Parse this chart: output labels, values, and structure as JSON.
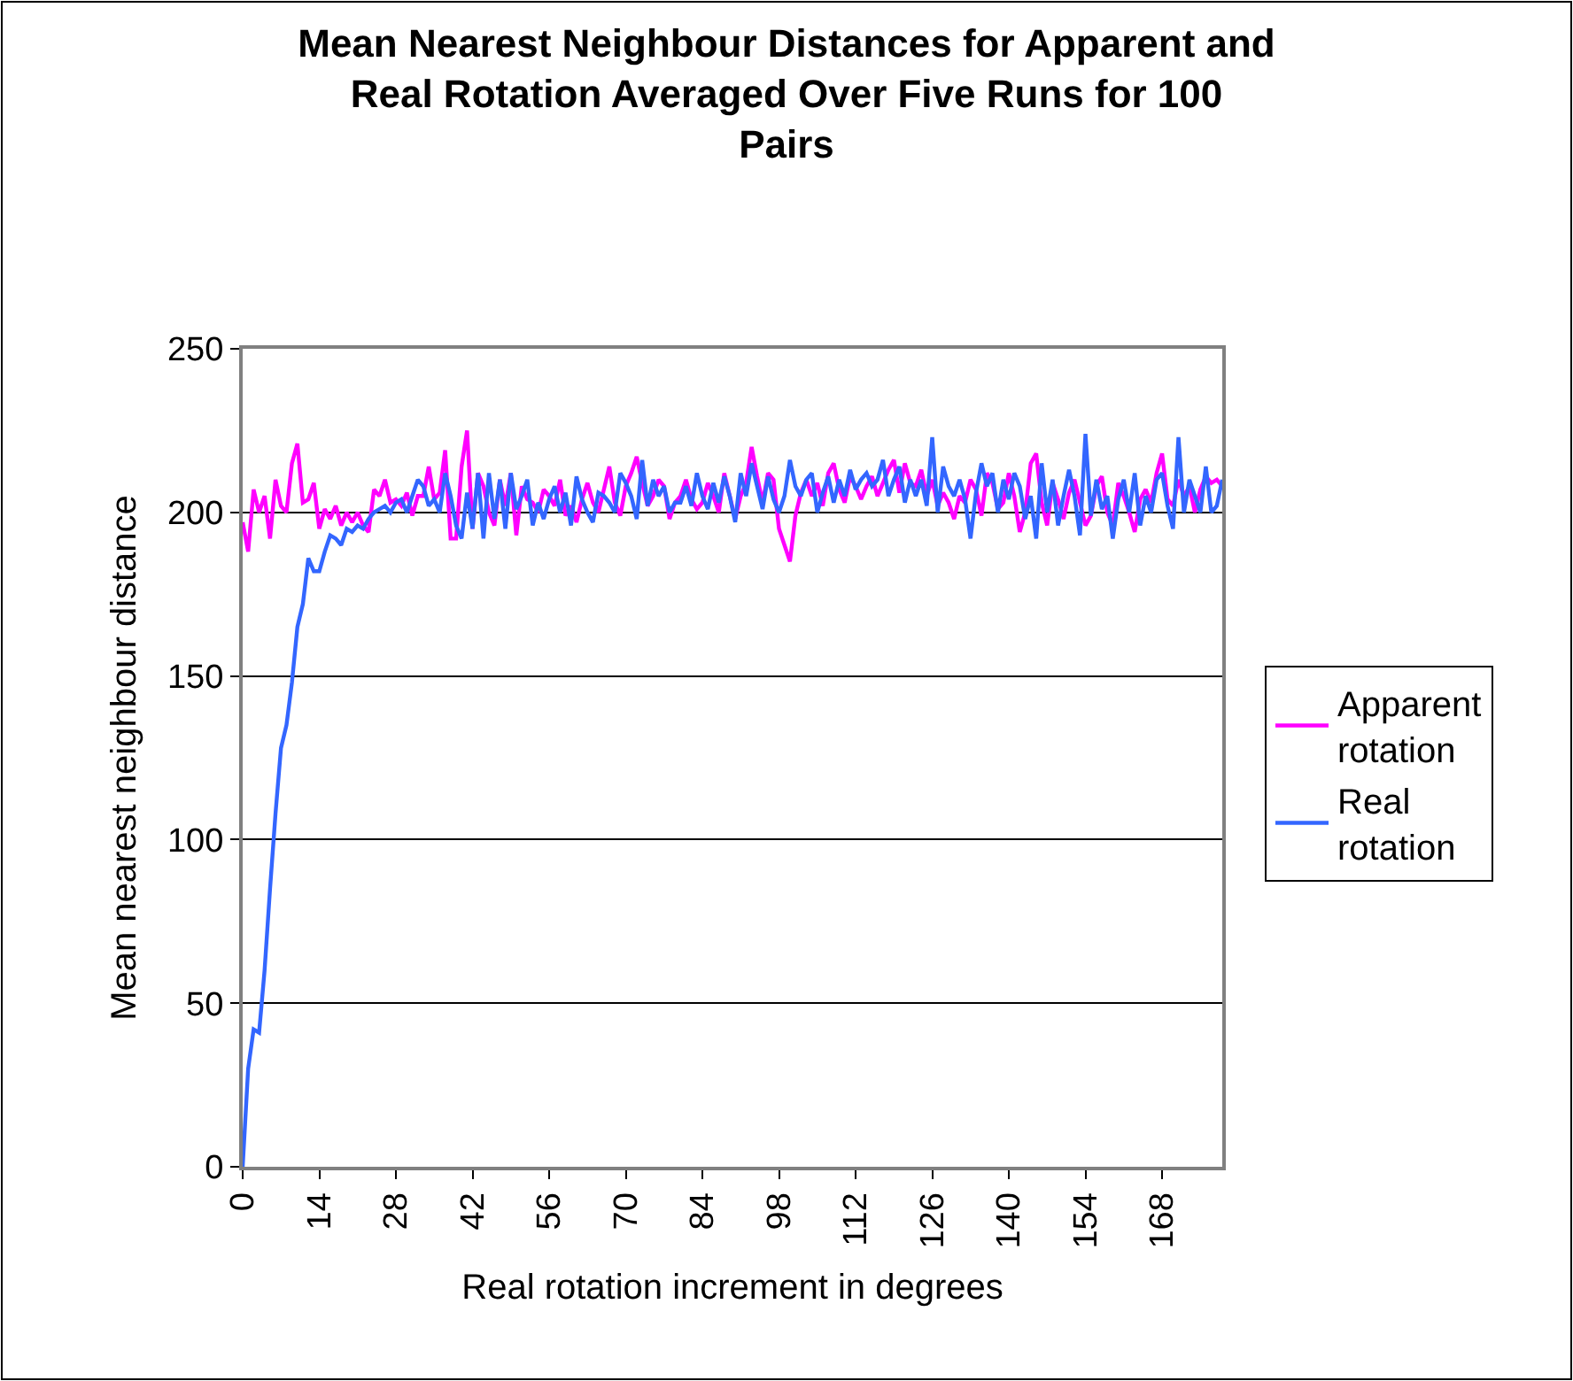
{
  "chart_data": {
    "type": "line",
    "title": "Mean Nearest Neighbour Distances for Apparent and Real Rotation Averaged Over Five Runs for 100 Pairs",
    "xlabel": "Real rotation increment in degrees",
    "ylabel": "Mean nearest neighbour distance",
    "x": [
      0,
      1,
      2,
      3,
      4,
      5,
      6,
      7,
      8,
      9,
      10,
      11,
      12,
      13,
      14,
      15,
      16,
      17,
      18,
      19,
      20,
      21,
      22,
      23,
      24,
      25,
      26,
      27,
      28,
      29,
      30,
      31,
      32,
      33,
      34,
      35,
      36,
      37,
      38,
      39,
      40,
      41,
      42,
      43,
      44,
      45,
      46,
      47,
      48,
      49,
      50,
      51,
      52,
      53,
      54,
      55,
      56,
      57,
      58,
      59,
      60,
      61,
      62,
      63,
      64,
      65,
      66,
      67,
      68,
      69,
      70,
      71,
      72,
      73,
      74,
      75,
      76,
      77,
      78,
      79,
      80,
      81,
      82,
      83,
      84,
      85,
      86,
      87,
      88,
      89,
      90,
      91,
      92,
      93,
      94,
      95,
      96,
      97,
      98,
      99,
      100,
      101,
      102,
      103,
      104,
      105,
      106,
      107,
      108,
      109,
      110,
      111,
      112,
      113,
      114,
      115,
      116,
      117,
      118,
      119,
      120,
      121,
      122,
      123,
      124,
      125,
      126,
      127,
      128,
      129,
      130,
      131,
      132,
      133,
      134,
      135,
      136,
      137,
      138,
      139,
      140,
      141,
      142,
      143,
      144,
      145,
      146,
      147,
      148,
      149,
      150,
      151,
      152,
      153,
      154,
      155,
      156,
      157,
      158,
      159,
      160,
      161,
      162,
      163,
      164,
      165,
      166,
      167,
      168,
      169,
      170,
      171,
      172,
      173,
      174,
      175,
      176,
      177,
      178,
      179
    ],
    "series": [
      {
        "name": "Apparent rotation",
        "color": "#ff00ff",
        "values": [
          197,
          188,
          207,
          200,
          205,
          192,
          210,
          202,
          200,
          215,
          221,
          203,
          204,
          209,
          195,
          201,
          198,
          202,
          196,
          200,
          197,
          200,
          196,
          194,
          207,
          205,
          210,
          203,
          204,
          202,
          206,
          199,
          205,
          205,
          214,
          204,
          206,
          219,
          192,
          192,
          214,
          225,
          195,
          212,
          208,
          200,
          196,
          210,
          202,
          212,
          193,
          208,
          204,
          203,
          200,
          207,
          205,
          202,
          210,
          199,
          202,
          197,
          204,
          209,
          203,
          200,
          207,
          214,
          203,
          199,
          208,
          212,
          217,
          209,
          202,
          205,
          210,
          208,
          198,
          203,
          205,
          210,
          204,
          201,
          203,
          209,
          205,
          200,
          212,
          205,
          198,
          205,
          209,
          220,
          211,
          203,
          212,
          210,
          195,
          190,
          185,
          199,
          206,
          210,
          205,
          209,
          202,
          212,
          215,
          207,
          203,
          211,
          208,
          204,
          208,
          211,
          205,
          209,
          213,
          216,
          206,
          215,
          209,
          208,
          213,
          205,
          210,
          202,
          206,
          203,
          198,
          205,
          203,
          210,
          207,
          199,
          212,
          209,
          201,
          203,
          212,
          205,
          194,
          200,
          215,
          218,
          203,
          196,
          209,
          204,
          198,
          206,
          210,
          203,
          196,
          199,
          208,
          211,
          200,
          196,
          209,
          205,
          200,
          194,
          204,
          207,
          203,
          212,
          218,
          204,
          202,
          210,
          205,
          208,
          200,
          207,
          211,
          209,
          210,
          208
        ]
      },
      {
        "name": "Real rotation",
        "color": "#3366ff",
        "values": [
          0,
          30,
          42,
          41,
          60,
          85,
          108,
          128,
          135,
          148,
          165,
          172,
          186,
          182,
          182,
          188,
          193,
          192,
          190,
          195,
          194,
          196,
          195,
          198,
          200,
          201,
          202,
          200,
          203,
          204,
          200,
          205,
          210,
          208,
          202,
          204,
          200,
          212,
          205,
          196,
          192,
          206,
          195,
          212,
          192,
          212,
          198,
          210,
          195,
          212,
          201,
          205,
          210,
          196,
          203,
          198,
          204,
          208,
          200,
          206,
          196,
          211,
          204,
          200,
          197,
          206,
          205,
          203,
          200,
          212,
          209,
          205,
          198,
          216,
          202,
          210,
          205,
          208,
          200,
          203,
          203,
          208,
          202,
          212,
          205,
          201,
          209,
          203,
          211,
          205,
          197,
          212,
          205,
          215,
          208,
          201,
          211,
          204,
          200,
          205,
          216,
          208,
          205,
          210,
          212,
          200,
          206,
          211,
          203,
          210,
          205,
          213,
          207,
          210,
          212,
          208,
          210,
          216,
          205,
          210,
          214,
          203,
          210,
          205,
          210,
          202,
          223,
          200,
          214,
          208,
          205,
          210,
          204,
          192,
          206,
          215,
          208,
          212,
          200,
          210,
          204,
          212,
          208,
          198,
          205,
          192,
          215,
          200,
          210,
          196,
          205,
          213,
          205,
          193,
          224,
          199,
          210,
          201,
          205,
          192,
          204,
          210,
          200,
          212,
          196,
          205,
          200,
          210,
          212,
          202,
          195,
          223,
          200,
          210,
          205,
          200,
          214,
          200,
          202,
          210
        ]
      }
    ],
    "xlim": [
      0,
      179
    ],
    "xticks": [
      0,
      14,
      28,
      42,
      56,
      70,
      84,
      98,
      112,
      126,
      140,
      154,
      168
    ],
    "ylim": [
      0,
      250
    ],
    "yticks": [
      0,
      50,
      100,
      150,
      200,
      250
    ],
    "grid": "y",
    "legend": "right",
    "marker": "none",
    "line_style": "solid"
  }
}
